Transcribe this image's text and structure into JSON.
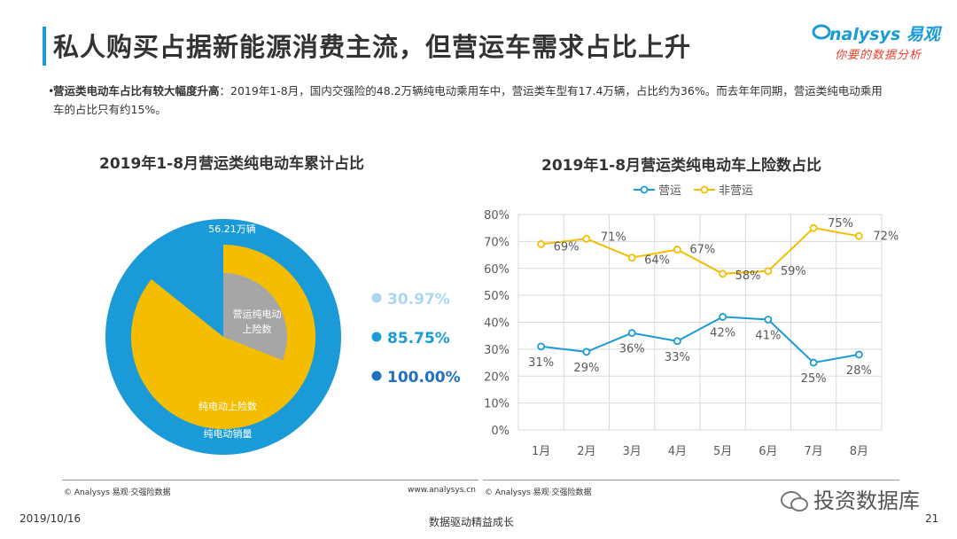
{
  "header": {
    "title": "私人购买占据新能源消费主流，但营运车需求占比上升",
    "logo_main": "nalysys 易观",
    "logo_sub": "你要的数据分析"
  },
  "summary": {
    "bold": "营运类电动车占比有较大幅度升高",
    "text": "：2019年1-8月，国内交强险的48.2万辆纯电动乘用车中，营运类车型有17.4万辆，占比约为36%。而去年年同期，营运类纯电动乘用车的占比只有约15%。"
  },
  "left_chart": {
    "title": "2019年1-8月营运类纯电动车累计占比",
    "source": "© Analysys 易观·交强险数据",
    "url": "www.analysys.cn"
  },
  "right_chart": {
    "title": "2019年1-8月营运类纯电动车上险数占比",
    "source": "© Analysys 易观·交强险数据"
  },
  "footer": {
    "date": "2019/10/16",
    "slogan": "数据驱动精益成长",
    "page": "21",
    "wechat": "投资数据库"
  },
  "colors": {
    "blue": "#1a9bd7",
    "yellow": "#f5bd00",
    "gray": "#a6a6a6",
    "light_blue": "#a9d8f2",
    "dark_blue": "#1f6fc4"
  },
  "chart_data": [
    {
      "type": "pie",
      "subtype": "nested-radial",
      "title": "2019年1-8月营运类纯电动车累计占比",
      "total_label": "56.21万辆",
      "rings": [
        {
          "name": "纯电动销量",
          "value": 100.0,
          "label": "100.00%",
          "color": "#1a9bd7"
        },
        {
          "name": "纯电动上险数",
          "value": 85.75,
          "label": "85.75%",
          "color": "#f5bd00"
        },
        {
          "name": "营运纯电动上险数",
          "value": 30.97,
          "label": "30.97%",
          "color": "#a6a6a6"
        }
      ],
      "legend": [
        {
          "label": "30.97%",
          "color": "#a9d8f2"
        },
        {
          "label": "85.75%",
          "color": "#1a9bd7"
        },
        {
          "label": "100.00%",
          "color": "#1f6fc4"
        }
      ]
    },
    {
      "type": "line",
      "title": "2019年1-8月营运类纯电动车上险数占比",
      "categories": [
        "1月",
        "2月",
        "3月",
        "4月",
        "5月",
        "6月",
        "7月",
        "8月"
      ],
      "series": [
        {
          "name": "营运",
          "color": "#1a9bd7",
          "values": [
            31,
            29,
            36,
            33,
            42,
            41,
            25,
            28
          ],
          "labels": [
            "31%",
            "29%",
            "36%",
            "33%",
            "42%",
            "41%",
            "25%",
            "28%"
          ]
        },
        {
          "name": "非营运",
          "color": "#f5bd00",
          "values": [
            69,
            71,
            64,
            67,
            58,
            59,
            75,
            72
          ],
          "labels": [
            "69%",
            "71%",
            "64%",
            "67%",
            "58%",
            "59%",
            "75%",
            "72%"
          ]
        }
      ],
      "yticks": [
        "0%",
        "10%",
        "20%",
        "30%",
        "40%",
        "50%",
        "60%",
        "70%",
        "80%"
      ],
      "ylim": [
        0,
        80
      ],
      "xlabel": "",
      "ylabel": "",
      "grid": true,
      "legend_position": "top"
    }
  ]
}
